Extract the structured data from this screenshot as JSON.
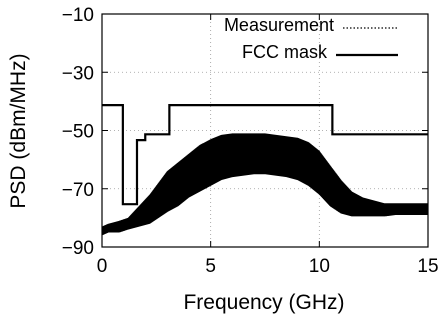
{
  "chart_data": {
    "type": "line",
    "title": "",
    "xlabel": "Frequency (GHz)",
    "ylabel": "PSD (dBm/MHz)",
    "xlim": [
      0,
      15
    ],
    "ylim": [
      -90,
      -10
    ],
    "x_ticks": [
      "0",
      "5",
      "10",
      "15"
    ],
    "y_ticks": [
      "−90",
      "−70",
      "−50",
      "−30",
      "−10"
    ],
    "grid": true,
    "legend_position": "top-right",
    "series": [
      {
        "name": "Measurement",
        "style": "dotted",
        "color": "#000000",
        "x": [
          0.0,
          0.3,
          0.8,
          1.2,
          1.7,
          2.2,
          2.6,
          3.0,
          3.5,
          4.0,
          4.5,
          5.0,
          5.5,
          6.0,
          6.5,
          7.0,
          7.5,
          8.0,
          8.5,
          9.0,
          9.5,
          10.0,
          10.5,
          11.0,
          11.5,
          12.0,
          12.5,
          13.0,
          13.5,
          14.0,
          14.5,
          15.0
        ],
        "upper": [
          -83,
          -82,
          -81,
          -80,
          -76,
          -72,
          -68,
          -64,
          -61,
          -58,
          -55,
          -53,
          -51.5,
          -51,
          -51,
          -51,
          -51,
          -51.5,
          -52,
          -52.5,
          -54,
          -57,
          -62,
          -67,
          -71,
          -73,
          -74,
          -75,
          -75,
          -75,
          -75,
          -75
        ],
        "lower": [
          -86,
          -85,
          -85,
          -84,
          -83,
          -82,
          -80,
          -78,
          -76,
          -73,
          -71,
          -69,
          -67,
          -66,
          -65.5,
          -65,
          -65,
          -65.5,
          -66,
          -67,
          -69,
          -72,
          -76,
          -78.5,
          -79.5,
          -79.5,
          -79.5,
          -79.5,
          -79,
          -79,
          -79,
          -79
        ]
      },
      {
        "name": "FCC mask",
        "style": "solid",
        "color": "#000000",
        "x": [
          0.0,
          0.96,
          0.96,
          1.61,
          1.61,
          1.99,
          1.99,
          3.1,
          3.1,
          10.6,
          10.6,
          15.0
        ],
        "y": [
          -41.3,
          -41.3,
          -75.3,
          -75.3,
          -53.3,
          -53.3,
          -51.3,
          -51.3,
          -41.3,
          -41.3,
          -51.3,
          -51.3
        ]
      }
    ]
  }
}
